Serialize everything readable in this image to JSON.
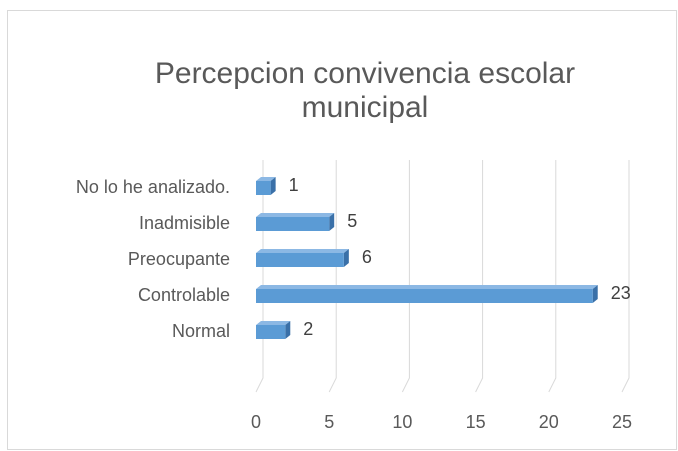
{
  "chart_data": {
    "type": "bar",
    "orientation": "horizontal",
    "three_d": true,
    "title": "Percepcion convivencia escolar municipal",
    "categories": [
      "No lo he analizado.",
      "Inadmisible",
      "Preocupante",
      "Controlable",
      "Normal"
    ],
    "values": [
      1,
      5,
      6,
      23,
      2
    ],
    "color": "#5b9bd5",
    "xlim": [
      0,
      25
    ],
    "xticks": [
      0,
      5,
      10,
      15,
      20,
      25
    ],
    "grid": true
  }
}
